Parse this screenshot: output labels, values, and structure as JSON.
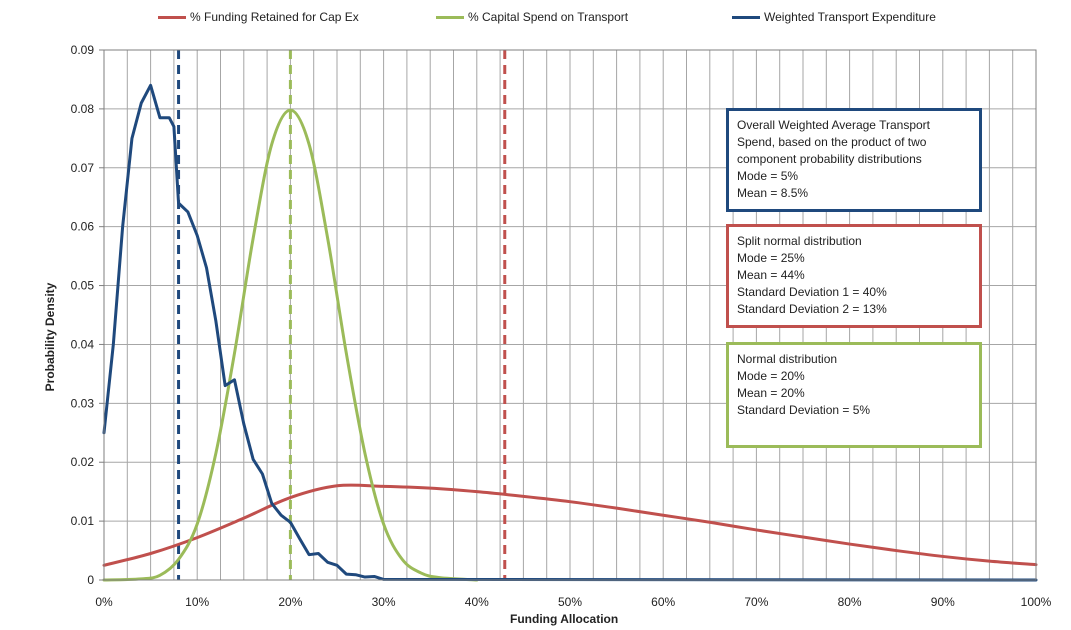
{
  "chart_data": {
    "type": "line",
    "title": "",
    "xlabel": "Funding Allocation",
    "ylabel": "Probability Density",
    "xlim": [
      0,
      100
    ],
    "ylim": [
      0,
      0.09
    ],
    "x_ticks": [
      "0%",
      "10%",
      "20%",
      "30%",
      "40%",
      "50%",
      "60%",
      "70%",
      "80%",
      "90%",
      "100%"
    ],
    "y_ticks": [
      "0",
      "0.01",
      "0.02",
      "0.03",
      "0.04",
      "0.05",
      "0.06",
      "0.07",
      "0.08",
      "0.09"
    ],
    "grid": true,
    "legend_position": "top",
    "series": [
      {
        "name": "% Funding Retained for Cap Ex",
        "color": "#c0504d",
        "x": [
          0,
          5,
          10,
          15,
          20,
          25,
          30,
          35,
          40,
          45,
          50,
          55,
          60,
          65,
          70,
          75,
          80,
          85,
          90,
          95,
          100
        ],
        "values": [
          0.0025,
          0.0045,
          0.0072,
          0.0105,
          0.014,
          0.016,
          0.0159,
          0.0156,
          0.015,
          0.0142,
          0.0133,
          0.0122,
          0.011,
          0.0098,
          0.0085,
          0.0073,
          0.0061,
          0.005,
          0.004,
          0.0032,
          0.0026
        ]
      },
      {
        "name": "% Capital Spend on Transport",
        "color": "#9bbb59",
        "x": [
          0,
          4,
          6,
          8,
          10,
          12,
          14,
          16,
          18,
          20,
          22,
          24,
          26,
          28,
          30,
          32,
          34,
          36,
          40
        ],
        "values": [
          0,
          0.0002,
          0.0008,
          0.0035,
          0.0095,
          0.0215,
          0.0385,
          0.058,
          0.074,
          0.0798,
          0.074,
          0.058,
          0.0385,
          0.0215,
          0.0095,
          0.0035,
          0.0012,
          0.0004,
          0
        ]
      },
      {
        "name": "Weighted Transport Expenditure",
        "color": "#1f497d",
        "x": [
          0,
          1,
          2,
          3,
          4,
          5,
          6,
          7,
          7.5,
          8,
          9,
          10,
          11,
          12,
          13,
          14,
          15,
          16,
          17,
          18,
          19,
          20,
          21,
          22,
          23,
          24,
          25,
          26,
          27,
          28,
          29,
          30,
          100
        ],
        "values": [
          0.025,
          0.04,
          0.06,
          0.075,
          0.081,
          0.084,
          0.0785,
          0.0785,
          0.077,
          0.064,
          0.0625,
          0.0585,
          0.053,
          0.044,
          0.033,
          0.034,
          0.0265,
          0.0205,
          0.018,
          0.013,
          0.011,
          0.0098,
          0.007,
          0.0043,
          0.0045,
          0.003,
          0.0025,
          0.001,
          0.0009,
          0.0005,
          0.0006,
          0.0001,
          0
        ]
      }
    ],
    "reference_lines": [
      {
        "x": 8,
        "color": "#1f497d"
      },
      {
        "x": 20,
        "color": "#9bbb59"
      },
      {
        "x": 43,
        "color": "#c0504d"
      }
    ],
    "annotations": [
      {
        "color": "#1f497d",
        "lines": [
          "Overall Weighted Average Transport",
          "Spend, based on the product of two",
          "component probability distributions",
          "Mode = 5%",
          "Mean = 8.5%"
        ]
      },
      {
        "color": "#c0504d",
        "lines": [
          "Split normal distribution",
          "Mode = 25%",
          "Mean = 44%",
          "Standard Deviation 1 = 40%",
          "Standard Deviation 2 = 13%"
        ]
      },
      {
        "color": "#9bbb59",
        "lines": [
          "Normal distribution",
          "Mode = 20%",
          "Mean = 20%",
          "Standard Deviation = 5%"
        ]
      }
    ]
  }
}
